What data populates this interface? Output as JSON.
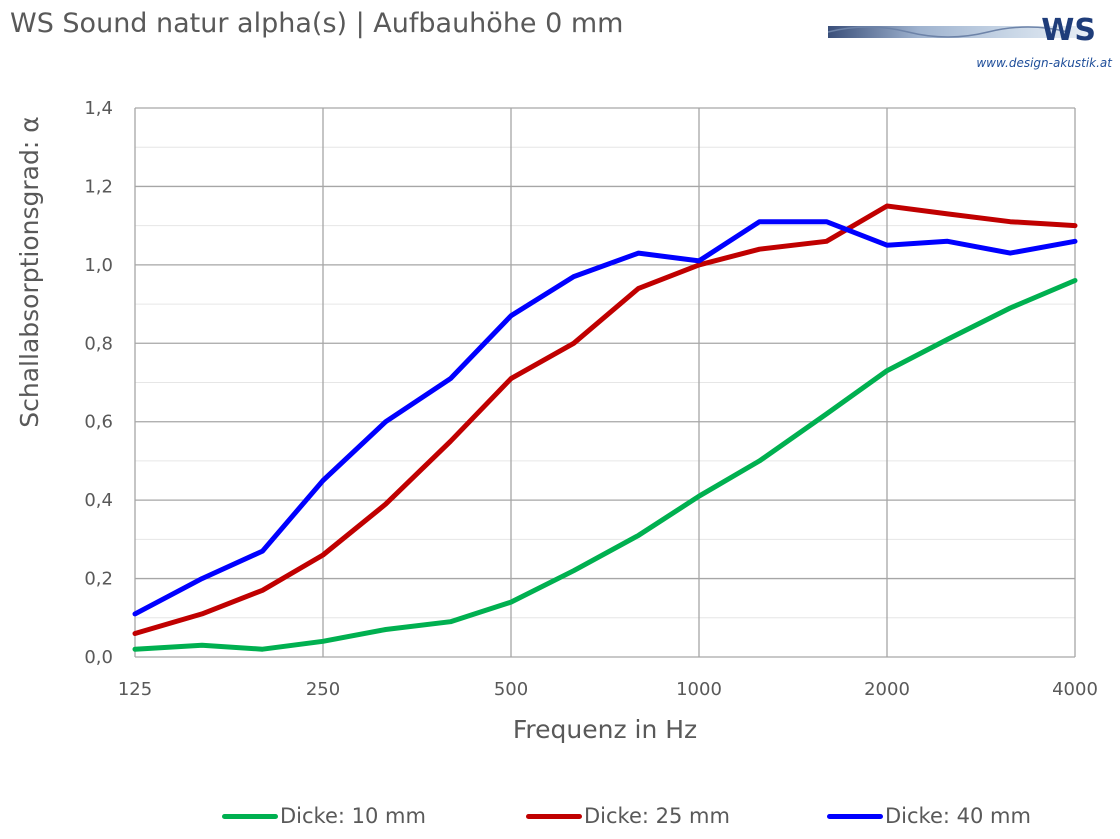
{
  "header": {
    "title": "WS Sound natur alpha(s) | Aufbauhöhe 0 mm",
    "logo_text": "WS",
    "logo_url": "www.design-akustik.at"
  },
  "chart_data": {
    "type": "line",
    "title": "WS Sound natur alpha(s) | Aufbauhöhe 0 mm",
    "xlabel": "Frequenz in Hz",
    "ylabel": "Schallabsorptionsgrad: α",
    "x_scale": "log",
    "x": [
      125,
      160,
      200,
      250,
      315,
      400,
      500,
      630,
      800,
      1000,
      1250,
      1600,
      2000,
      2500,
      3150,
      4000
    ],
    "x_ticks": [
      125,
      250,
      500,
      1000,
      2000,
      4000
    ],
    "x_tick_labels": [
      "125",
      "250",
      "500",
      "1000",
      "2000",
      "4000"
    ],
    "ylim": [
      0,
      1.4
    ],
    "y_ticks": [
      0,
      0.2,
      0.4,
      0.6,
      0.8,
      1.0,
      1.2,
      1.4
    ],
    "y_tick_labels": [
      "0,0",
      "0,2",
      "0,4",
      "0,6",
      "0,8",
      "1,0",
      "1,2",
      "1,4"
    ],
    "grid": true,
    "legend_position": "bottom",
    "series": [
      {
        "name": "Dicke: 10 mm",
        "color": "#00b050",
        "values": [
          0.02,
          0.03,
          0.02,
          0.04,
          0.07,
          0.09,
          0.14,
          0.22,
          0.31,
          0.41,
          0.5,
          0.62,
          0.73,
          0.81,
          0.89,
          0.96
        ]
      },
      {
        "name": "Dicke: 25 mm",
        "color": "#c00000",
        "values": [
          0.06,
          0.11,
          0.17,
          0.26,
          0.39,
          0.55,
          0.71,
          0.8,
          0.94,
          1.0,
          1.04,
          1.06,
          1.15,
          1.13,
          1.11,
          1.1
        ]
      },
      {
        "name": "Dicke: 40 mm",
        "color": "#0000ff",
        "values": [
          0.11,
          0.2,
          0.27,
          0.45,
          0.6,
          0.71,
          0.87,
          0.97,
          1.03,
          1.01,
          1.11,
          1.11,
          1.05,
          1.06,
          1.03,
          1.06
        ]
      }
    ]
  }
}
